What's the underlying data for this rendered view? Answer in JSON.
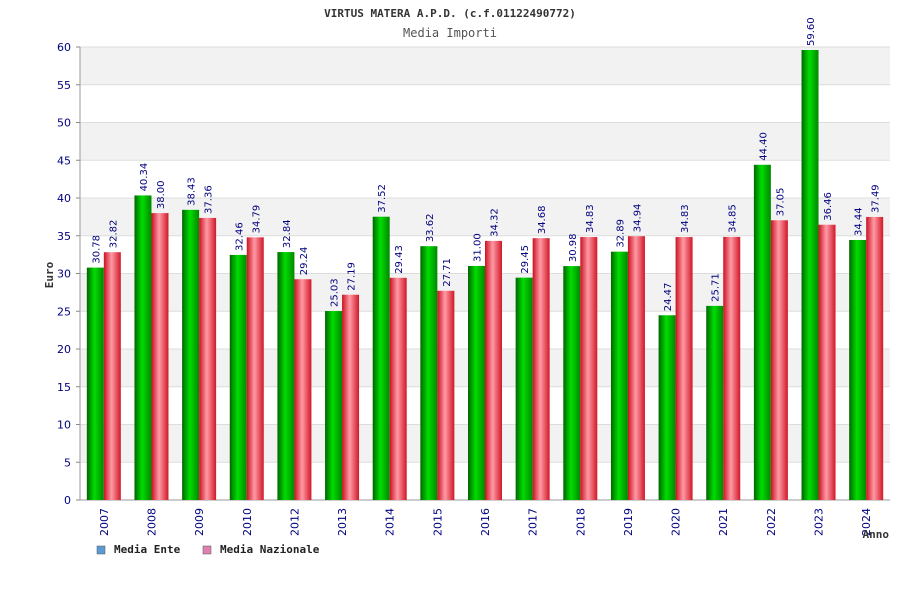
{
  "chart_data": {
    "type": "bar",
    "title": "VIRTUS MATERA A.P.D. (c.f.01122490772)",
    "subtitle": "Media Importi",
    "xlabel": "Anno",
    "ylabel": "Euro",
    "ylim": [
      0,
      60
    ],
    "yticks": [
      0,
      5,
      10,
      15,
      20,
      25,
      30,
      35,
      40,
      45,
      50,
      55,
      60
    ],
    "categories": [
      "2007",
      "2008",
      "2009",
      "2010",
      "2012",
      "2013",
      "2014",
      "2015",
      "2016",
      "2017",
      "2018",
      "2019",
      "2020",
      "2021",
      "2022",
      "2023",
      "2024"
    ],
    "series": [
      {
        "name": "Media Ente",
        "legend_color": "#5b9bd5",
        "bar_color": "#00c000",
        "values": [
          30.78,
          40.34,
          38.43,
          32.46,
          32.84,
          25.03,
          37.52,
          33.62,
          31.0,
          29.45,
          30.98,
          32.89,
          24.47,
          25.71,
          44.4,
          59.6,
          34.44
        ],
        "labels": [
          "30.78",
          "40.34",
          "38.43",
          "32.46",
          "32.84",
          "25.03",
          "37.52",
          "33.62",
          "31.00",
          "29.45",
          "30.98",
          "32.89",
          "24.47",
          "25.71",
          "44.40",
          "59.60",
          "34.44"
        ]
      },
      {
        "name": "Media Nazionale",
        "legend_color": "#e080b0",
        "bar_color": "#e02030",
        "values": [
          32.82,
          38.0,
          37.36,
          34.79,
          29.24,
          27.19,
          29.43,
          27.71,
          34.32,
          34.68,
          34.83,
          34.94,
          34.83,
          34.85,
          37.05,
          36.46,
          37.49
        ],
        "labels": [
          "32.82",
          "38.00",
          "37.36",
          "34.79",
          "29.24",
          "27.19",
          "29.43",
          "27.71",
          "34.32",
          "34.68",
          "34.83",
          "34.94",
          "34.83",
          "34.85",
          "37.05",
          "36.46",
          "37.49"
        ]
      }
    ],
    "grid": true,
    "legend": "bottom-left"
  }
}
